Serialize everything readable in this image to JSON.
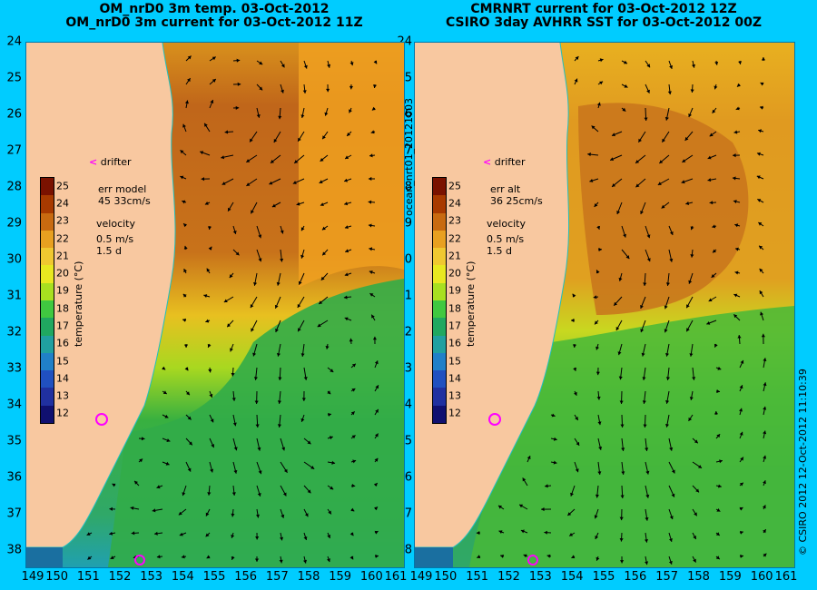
{
  "left_panel": {
    "title_line1": "OM_nrD0 3m temp. 03-Oct-2012",
    "title_line2": "OM_nrD0 3m current for 03-Oct-2012 11Z",
    "err_label": "err model",
    "err_value": "45 33cm/s"
  },
  "right_panel": {
    "title_line1": "CMRNRT current for 03-Oct-2012 12Z",
    "title_line2": "CSIRO 3day AVHRR SST for 03-Oct-2012 00Z",
    "err_label": "err alt",
    "err_value": "36 25cm/s"
  },
  "legend": {
    "drifter": "drifter",
    "drifter_marker": "<",
    "velocity_label": "velocity",
    "velocity_scale": "0.5 m/s",
    "velocity_time": "1.5 d",
    "colorbar_title": "temperature (°C)",
    "colorbar_ticks": [
      "25",
      "24",
      "23",
      "22",
      "21",
      "20",
      "19",
      "18",
      "17",
      "16",
      "15",
      "14",
      "13",
      "12"
    ],
    "colorbar_colors": [
      "#7a1200",
      "#a83a00",
      "#c86a10",
      "#e8a020",
      "#f0c830",
      "#e8e820",
      "#a8e020",
      "#40c840",
      "#20a860",
      "#20a0a0",
      "#2080c8",
      "#2050c0",
      "#2030a0",
      "#101070"
    ]
  },
  "axes": {
    "lat_labels": [
      "24",
      "25",
      "26",
      "27",
      "28",
      "29",
      "30",
      "31",
      "32",
      "33",
      "34",
      "35",
      "36",
      "37",
      "38"
    ],
    "lon_labels": [
      "149",
      "150",
      "151",
      "152",
      "153",
      "154",
      "155",
      "156",
      "157",
      "158",
      "159",
      "160",
      "161"
    ]
  },
  "side_labels": {
    "middle": "ocean_nrt01_20121003",
    "right": "© CSIRO 2012   12-Oct-2012 11:10:39"
  },
  "colors": {
    "background": "#00ccff",
    "land": "#f8c8a0",
    "warm": "#c8741c",
    "mid": "#e8c020",
    "cool": "#30b040",
    "cold": "#20a8a0",
    "marker": "#ff00ff"
  }
}
